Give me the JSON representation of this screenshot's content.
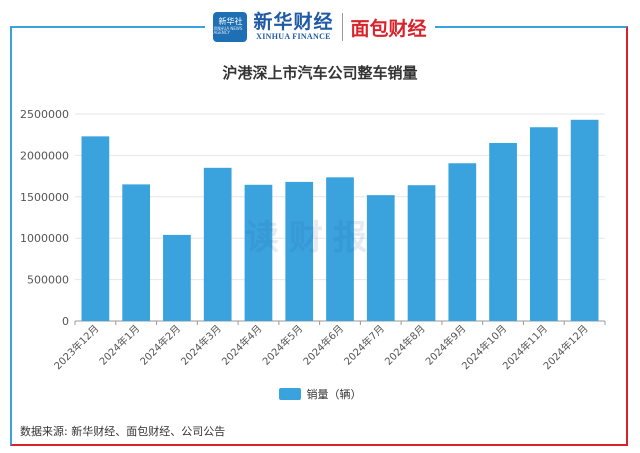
{
  "header": {
    "logo_main": "新华社",
    "logo_sub": "XINHUA NEWS AGENCY",
    "brand_cn": "新华财经",
    "brand_en": "XINHUA FINANCE",
    "brand2": "面包财经"
  },
  "watermark": "读财报",
  "source": "数据来源: 新华财经、面包财经、公司公告",
  "colors": {
    "bar": "#3aa3dd",
    "frame_accent": "#d8232a"
  },
  "chart_data": {
    "type": "bar",
    "title": "沪港深上市汽车公司整车销量",
    "categories": [
      "2023年12月",
      "2024年1月",
      "2024年2月",
      "2024年3月",
      "2024年4月",
      "2024年5月",
      "2024年6月",
      "2024年7月",
      "2024年8月",
      "2024年9月",
      "2024年10月",
      "2024年11月",
      "2024年12月"
    ],
    "series": [
      {
        "name": "销量（辆）",
        "values": [
          2230000,
          1650000,
          1040000,
          1850000,
          1645000,
          1680000,
          1735000,
          1520000,
          1640000,
          1905000,
          2150000,
          2340000,
          2430000
        ]
      }
    ],
    "y_ticks": [
      "0",
      "500000",
      "1000000",
      "1500000",
      "2000000",
      "2500000"
    ],
    "ylim": [
      0,
      2500000
    ],
    "legend_position": "bottom",
    "grid": true
  }
}
